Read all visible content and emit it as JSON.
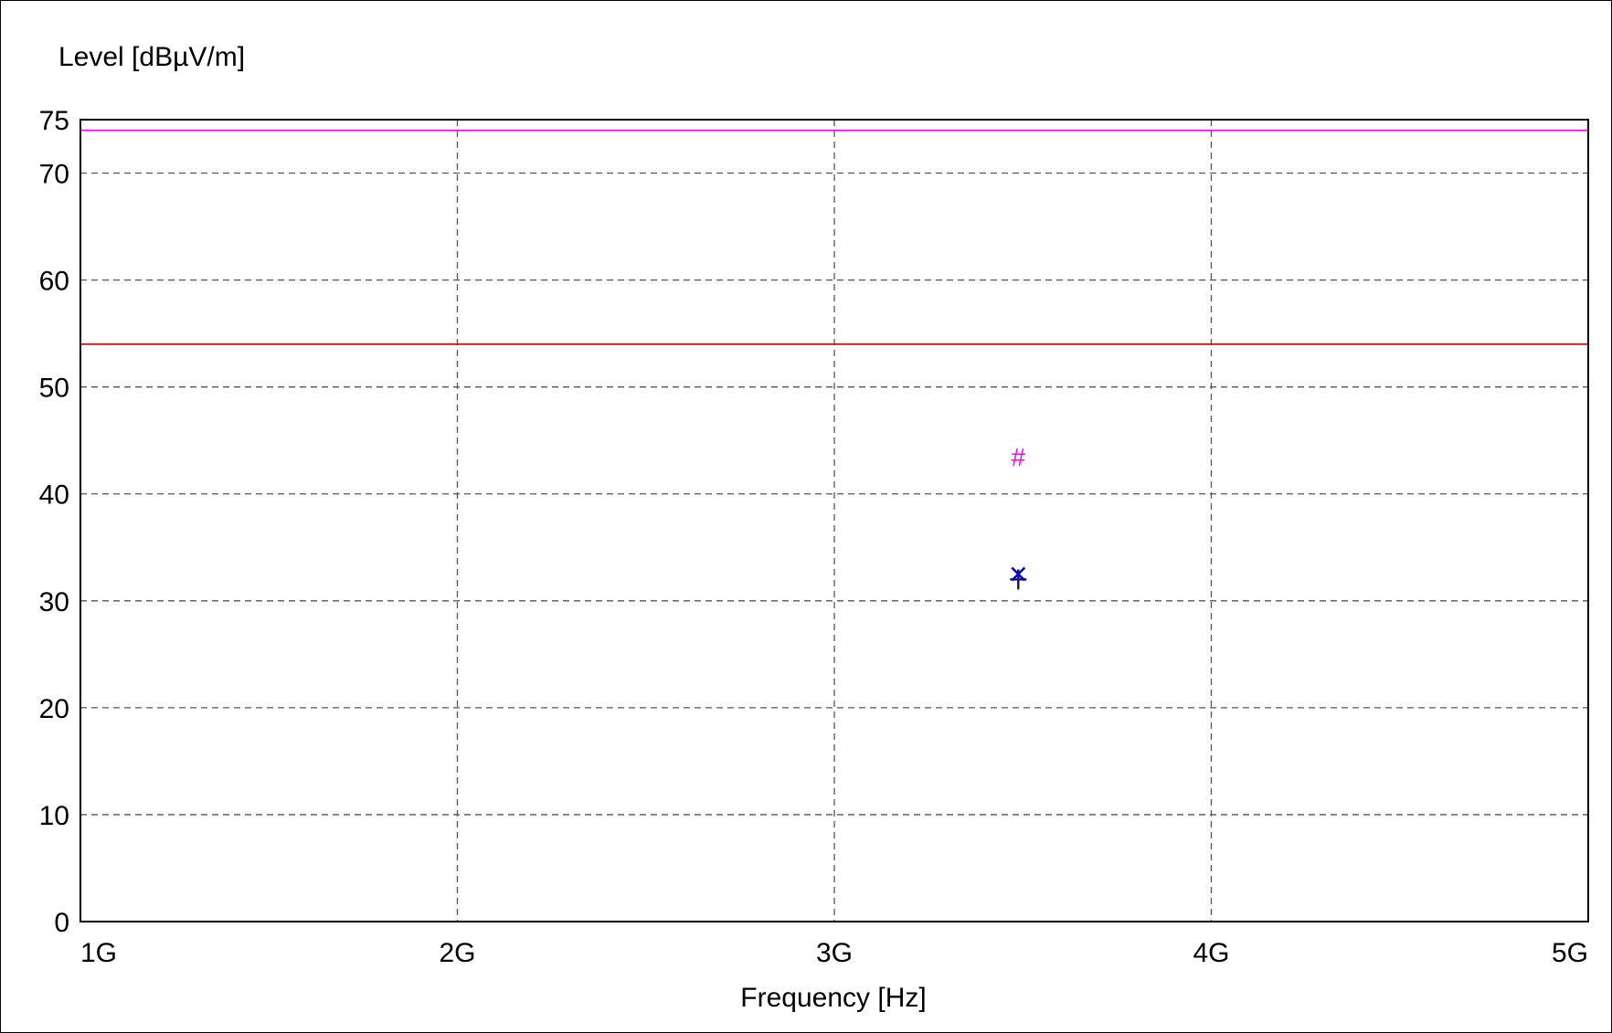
{
  "chart_data": {
    "type": "scatter",
    "title": "",
    "ylabel": "Level [dBµV/m]",
    "xlabel": "Frequency [Hz]",
    "xlim": [
      1000000000,
      5000000000
    ],
    "ylim": [
      0,
      75
    ],
    "x_ticks": [
      {
        "value": 1000000000,
        "label": "1G"
      },
      {
        "value": 2000000000,
        "label": "2G"
      },
      {
        "value": 3000000000,
        "label": "3G"
      },
      {
        "value": 4000000000,
        "label": "4G"
      },
      {
        "value": 5000000000,
        "label": "5G"
      }
    ],
    "y_ticks": [
      {
        "value": 0,
        "label": "0"
      },
      {
        "value": 10,
        "label": "10"
      },
      {
        "value": 20,
        "label": "20"
      },
      {
        "value": 30,
        "label": "30"
      },
      {
        "value": 40,
        "label": "40"
      },
      {
        "value": 50,
        "label": "50"
      },
      {
        "value": 60,
        "label": "60"
      },
      {
        "value": 70,
        "label": "70"
      },
      {
        "value": 75,
        "label": "75"
      }
    ],
    "grid": true,
    "limit_lines": [
      {
        "y": 74,
        "color": "#ff00ff"
      },
      {
        "y": 54,
        "color": "#cc0000"
      }
    ],
    "markers": [
      {
        "x": 3488000000,
        "y": 43.5,
        "symbol": "#",
        "color": "#ff00ff"
      },
      {
        "x": 3488000000,
        "y": 32.0,
        "symbol": "+",
        "color": "#1a1a66"
      },
      {
        "x": 3488000000,
        "y": 32.5,
        "symbol": "x",
        "color": "#0000dd"
      }
    ]
  }
}
